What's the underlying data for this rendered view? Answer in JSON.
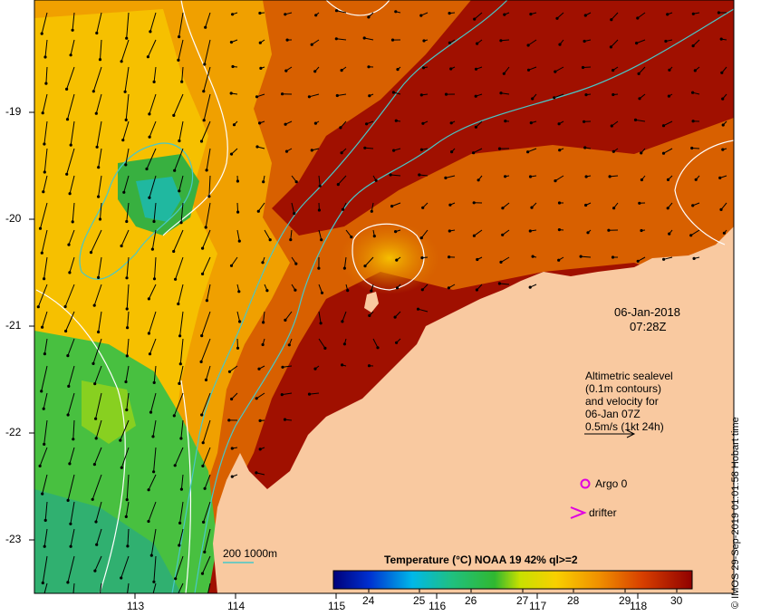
{
  "map": {
    "date": "06-Jan-2018",
    "time": "07:28Z",
    "longitude_ticks": [
      "113",
      "114",
      "115",
      "116",
      "117",
      "118"
    ],
    "latitude_ticks": [
      "-19",
      "-20",
      "-21",
      "-22",
      "-23"
    ],
    "legend": {
      "line1": "Altimetric sealevel",
      "line2": "(0.1m contours)",
      "line3": "and velocity for",
      "line4": "06-Jan 07Z",
      "line5": "0.5m/s (1kt 24h)",
      "argo_label": "Argo 0",
      "drifter_label": "drifter"
    },
    "bathymetry_label": "200  1000m",
    "colorbar": {
      "title": "Temperature (°C) NOAA 19 42% ql>=2",
      "ticks": [
        "24",
        "25",
        "26",
        "27",
        "28",
        "29",
        "30"
      ],
      "min": 23.5,
      "max": 30.5
    },
    "credit": "© IMOS 29-Sep-2019 01:01:58 Hobart time",
    "colors": {
      "land": "#f9c9a0",
      "sst_hot": "#a01000",
      "sst_orange": "#e88a00",
      "sst_yellow": "#f6c400",
      "sst_green": "#3cb83c",
      "contour_cyan": "#48c8c8",
      "argo": "#e000e0",
      "drifter": "#e000e0"
    }
  }
}
